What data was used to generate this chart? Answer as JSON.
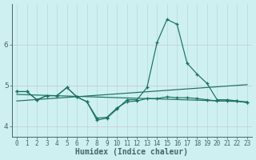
{
  "xlabel": "Humidex (Indice chaleur)",
  "background_color": "#cff0f0",
  "grid_color_v": "#b8d8d8",
  "grid_color_h": "#c8c8c8",
  "line_color": "#1a7060",
  "x": [
    0,
    1,
    2,
    3,
    4,
    5,
    6,
    7,
    8,
    9,
    10,
    11,
    12,
    13,
    14,
    15,
    16,
    17,
    18,
    19,
    20,
    21,
    22,
    23
  ],
  "series_spike": [
    4.85,
    4.85,
    4.65,
    4.75,
    4.75,
    4.95,
    4.72,
    4.6,
    4.15,
    4.2,
    4.42,
    4.65,
    4.65,
    4.95,
    6.05,
    6.62,
    6.5,
    5.55,
    5.28,
    5.05,
    4.65,
    4.65,
    4.62,
    4.58
  ],
  "series_flat": [
    4.85,
    4.85,
    4.65,
    4.75,
    4.75,
    4.95,
    4.72,
    4.6,
    4.2,
    4.22,
    4.45,
    4.6,
    4.62,
    4.68,
    4.68,
    4.72,
    4.7,
    4.7,
    4.68,
    4.65,
    4.62,
    4.62,
    4.62,
    4.58
  ],
  "trend1_x": [
    0,
    23
  ],
  "trend1_y": [
    4.78,
    4.6
  ],
  "trend2_x": [
    0,
    23
  ],
  "trend2_y": [
    4.62,
    5.02
  ],
  "ylim": [
    3.75,
    7.0
  ],
  "yticks": [
    4,
    5,
    6
  ],
  "xticks": [
    0,
    1,
    2,
    3,
    4,
    5,
    6,
    7,
    8,
    9,
    10,
    11,
    12,
    13,
    14,
    15,
    16,
    17,
    18,
    19,
    20,
    21,
    22,
    23
  ],
  "axis_color": "#446666",
  "tick_fontsize": 5.5,
  "xlabel_fontsize": 7.0
}
